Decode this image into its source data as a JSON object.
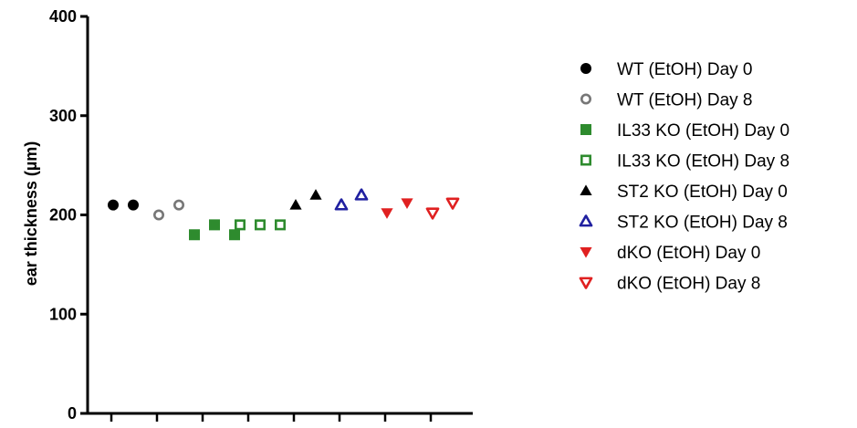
{
  "chart_data": {
    "type": "scatter",
    "title": "",
    "xlabel": "",
    "ylabel": "ear thickness (µm)",
    "ylim": [
      0,
      400
    ],
    "yticks": [
      0,
      100,
      200,
      300,
      400
    ],
    "grid": false,
    "legend_position": "right",
    "groups": 8,
    "series": [
      {
        "name": "WT (EtOH) Day 0",
        "marker": "circle",
        "filled": true,
        "color": "#000000",
        "group": 0,
        "values": [
          210,
          210
        ]
      },
      {
        "name": "WT (EtOH) Day 8",
        "marker": "circle",
        "filled": false,
        "color": "#777777",
        "group": 1,
        "values": [
          200,
          210
        ]
      },
      {
        "name": "IL33 KO (EtOH) Day 0",
        "marker": "square",
        "filled": true,
        "color": "#2e8b2e",
        "group": 2,
        "values": [
          180,
          190,
          180
        ]
      },
      {
        "name": "IL33 KO (EtOH) Day 8",
        "marker": "square",
        "filled": false,
        "color": "#2e8b2e",
        "group": 3,
        "values": [
          190,
          190,
          190
        ]
      },
      {
        "name": "ST2 KO (EtOH) Day 0",
        "marker": "triangle-up",
        "filled": true,
        "color": "#000000",
        "group": 4,
        "values": [
          210,
          220
        ]
      },
      {
        "name": "ST2 KO (EtOH) Day 8",
        "marker": "triangle-up",
        "filled": false,
        "color": "#2020a0",
        "group": 5,
        "values": [
          210,
          220
        ]
      },
      {
        "name": "dKO (EtOH) Day 0",
        "marker": "triangle-down",
        "filled": true,
        "color": "#e02020",
        "group": 6,
        "values": [
          202,
          212
        ]
      },
      {
        "name": "dKO (EtOH) Day 8",
        "marker": "triangle-down",
        "filled": false,
        "color": "#e02020",
        "group": 7,
        "values": [
          202,
          212
        ]
      }
    ]
  }
}
